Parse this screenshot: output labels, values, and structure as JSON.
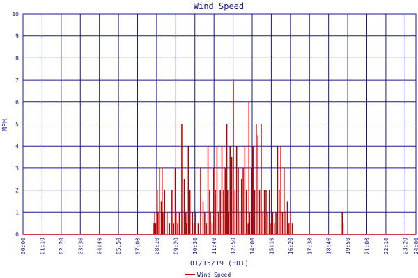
{
  "chart_data": {
    "type": "bar",
    "title": "Wind Speed",
    "xlabel": "01/15/19 (EDT)",
    "ylabel": "MPH",
    "ylim": [
      0,
      10
    ],
    "yticks": [
      "0",
      "1",
      "2",
      "3",
      "4",
      "5",
      "6",
      "7",
      "8",
      "9",
      "10"
    ],
    "xticks": [
      "00:00",
      "01:10",
      "02:20",
      "03:30",
      "04:40",
      "05:50",
      "07:00",
      "08:10",
      "09:20",
      "10:30",
      "11:40",
      "12:50",
      "14:00",
      "15:10",
      "16:20",
      "17:30",
      "18:40",
      "19:50",
      "21:00",
      "22:10",
      "23:20",
      "24:00"
    ],
    "grid": true,
    "colors": {
      "series": "#bb0000",
      "grid": "#1a1a8c",
      "text": "#1a1a8c"
    },
    "legend": {
      "position": "bottom-center"
    },
    "series": [
      {
        "name": "Wind Speed",
        "x_unit": "hours",
        "x": [
          8.0,
          8.05,
          8.1,
          8.2,
          8.25,
          8.35,
          8.45,
          8.5,
          8.55,
          8.65,
          8.8,
          8.95,
          9.1,
          9.2,
          9.3,
          9.35,
          9.45,
          9.55,
          9.7,
          9.85,
          9.95,
          10.0,
          10.1,
          10.2,
          10.35,
          10.45,
          10.55,
          10.7,
          10.85,
          11.0,
          11.1,
          11.2,
          11.3,
          11.4,
          11.45,
          11.55,
          11.65,
          11.75,
          11.85,
          11.95,
          12.05,
          12.15,
          12.25,
          12.35,
          12.45,
          12.5,
          12.55,
          12.65,
          12.75,
          12.85,
          12.95,
          13.05,
          13.15,
          13.25,
          13.35,
          13.45,
          13.55,
          13.65,
          13.75,
          13.8,
          13.85,
          13.95,
          14.05,
          14.15,
          14.25,
          14.35,
          14.45,
          14.55,
          14.65,
          14.75,
          14.85,
          14.95,
          15.05,
          15.15,
          15.25,
          15.35,
          15.45,
          15.55,
          15.65,
          15.75,
          15.85,
          15.95,
          16.05,
          16.15,
          16.25,
          16.35,
          16.45,
          19.5,
          19.55
        ],
        "values": [
          0.5,
          1,
          0.5,
          2,
          1,
          3,
          1.5,
          3,
          1,
          2,
          1,
          0.5,
          2,
          0.5,
          3,
          1,
          0.5,
          1,
          5,
          2.5,
          1,
          0.5,
          4,
          2,
          1,
          0.5,
          1,
          0.5,
          3,
          1.5,
          1,
          0.5,
          4,
          2,
          1,
          0.5,
          3,
          2,
          4,
          1,
          2,
          4,
          2,
          3,
          5,
          2,
          1,
          4,
          3.5,
          7,
          2,
          4,
          3,
          1,
          2.5,
          3,
          4,
          2,
          0.5,
          6,
          1,
          3,
          4,
          2,
          5,
          4.5,
          2,
          5,
          1,
          2,
          2,
          1,
          2,
          0.5,
          1,
          0.5,
          1,
          4,
          2,
          4,
          1,
          3,
          1,
          1.5,
          0.5,
          1,
          0.5,
          1,
          0.5
        ]
      }
    ]
  }
}
